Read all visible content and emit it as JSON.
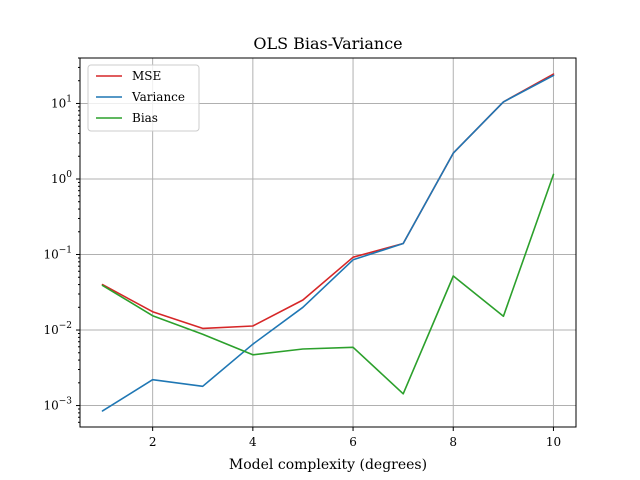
{
  "chart_data": {
    "type": "line",
    "title": "OLS Bias-Variance",
    "xlabel": "Model complexity (degrees)",
    "ylabel": "",
    "yscale": "log",
    "x": [
      1,
      2,
      3,
      4,
      5,
      6,
      7,
      8,
      9,
      10
    ],
    "xlim": [
      0.55,
      10.45
    ],
    "ylim": [
      0.00052,
      40
    ],
    "xticks": [
      2,
      4,
      6,
      8,
      10
    ],
    "yticks": [
      {
        "value": 0.001,
        "mantissa": "10",
        "exp": "−3"
      },
      {
        "value": 0.01,
        "mantissa": "10",
        "exp": "−2"
      },
      {
        "value": 0.1,
        "mantissa": "10",
        "exp": "−1"
      },
      {
        "value": 1,
        "mantissa": "10",
        "exp": "0"
      },
      {
        "value": 10,
        "mantissa": "10",
        "exp": "1"
      }
    ],
    "grid": true,
    "legend_position": "top-left",
    "series": [
      {
        "name": "MSE",
        "color": "#d62728",
        "values": [
          0.04,
          0.0175,
          0.0105,
          0.0113,
          0.025,
          0.092,
          0.14,
          2.2,
          10.5,
          24.5
        ]
      },
      {
        "name": "Variance",
        "color": "#1f77b4",
        "values": [
          0.00085,
          0.0022,
          0.0018,
          0.0065,
          0.02,
          0.085,
          0.14,
          2.2,
          10.5,
          23.5
        ]
      },
      {
        "name": "Bias",
        "color": "#2ca02c",
        "values": [
          0.039,
          0.0155,
          0.0088,
          0.0047,
          0.0056,
          0.0059,
          0.00143,
          0.052,
          0.0152,
          1.15
        ]
      }
    ]
  }
}
